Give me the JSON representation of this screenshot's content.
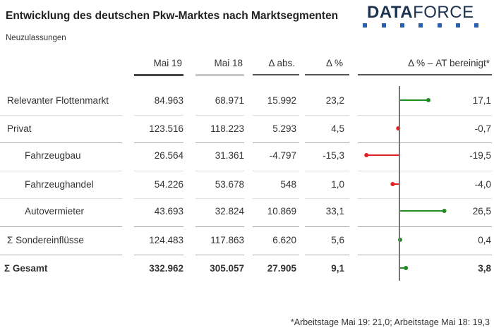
{
  "title": "Entwicklung des deutschen Pkw-Marktes nach Marktsegmenten",
  "subtitle": "Neuzulassungen",
  "logo": {
    "text_bold": "DATA",
    "text_light": "FORCE"
  },
  "footnote": "*Arbeitstage Mai 19: 21,0; Arbeitstage Mai 18: 19,3",
  "colors": {
    "positive": "#1e8c1e",
    "negative": "#e02020",
    "axis": "#777777",
    "mai19_underline": "#444444",
    "mai18_underline": "#c8c8c8",
    "logo": "#1b3350"
  },
  "chart_data": {
    "type": "table",
    "columns": [
      "",
      "Mai 19",
      "Mai 18",
      "Δ abs.",
      "Δ %",
      "Δ % – AT bereinigt*"
    ],
    "rows": [
      {
        "label": "Relevanter Flottenmarkt",
        "indent": false,
        "bold": false,
        "mai19": "84.963",
        "mai18": "68.971",
        "abs": "15.992",
        "pct": "23,2",
        "at": "17,1",
        "at_value": 17.1
      },
      {
        "label": "Privat",
        "indent": false,
        "bold": false,
        "mai19": "123.516",
        "mai18": "118.223",
        "abs": "5.293",
        "pct": "4,5",
        "at": "-0,7",
        "at_value": -0.7
      },
      {
        "label": "Fahrzeugbau",
        "indent": true,
        "bold": false,
        "mai19": "26.564",
        "mai18": "31.361",
        "abs": "-4.797",
        "pct": "-15,3",
        "at": "-19,5",
        "at_value": -19.5
      },
      {
        "label": "Fahrzeughandel",
        "indent": true,
        "bold": false,
        "mai19": "54.226",
        "mai18": "53.678",
        "abs": "548",
        "pct": "1,0",
        "at": "-4,0",
        "at_value": -4.0
      },
      {
        "label": "Autovermieter",
        "indent": true,
        "bold": false,
        "mai19": "43.693",
        "mai18": "32.824",
        "abs": "10.869",
        "pct": "33,1",
        "at": "26,5",
        "at_value": 26.5
      },
      {
        "label": "Σ Sondereinflüsse",
        "indent": false,
        "bold": false,
        "mai19": "124.483",
        "mai18": "117.863",
        "abs": "6.620",
        "pct": "5,6",
        "at": "0,4",
        "at_value": 0.4
      },
      {
        "label": "Σ Gesamt",
        "indent": false,
        "bold": true,
        "mai19": "332.962",
        "mai18": "305.057",
        "abs": "27.905",
        "pct": "9,1",
        "at": "3,8",
        "at_value": 3.8
      }
    ]
  }
}
